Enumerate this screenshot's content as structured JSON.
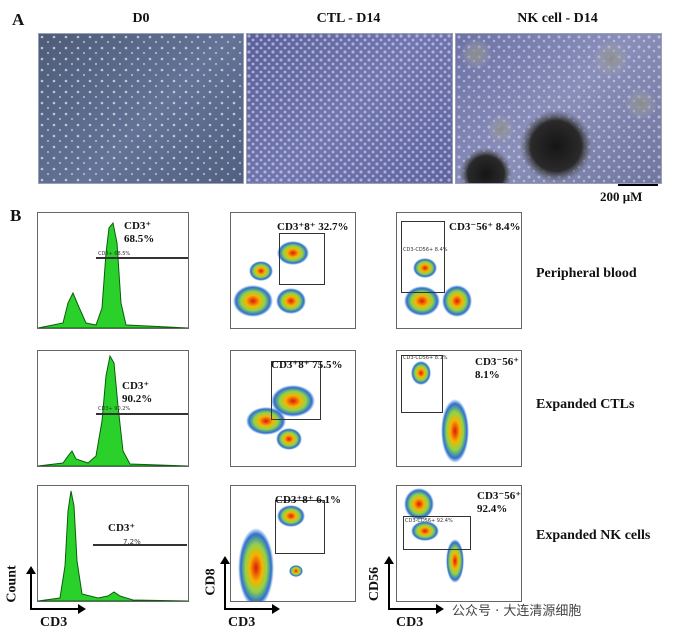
{
  "panel_a": {
    "letter": "A",
    "columns": [
      "D0",
      "CTL - D14",
      "NK cell - D14"
    ],
    "scale_bar_label": "200 μM"
  },
  "panel_b": {
    "letter": "B",
    "rows": [
      "Peripheral blood",
      "Expanded CTLs",
      "Expanded NK cells"
    ],
    "histograms": [
      {
        "gate_label": "CD3⁺",
        "value": "68.5%",
        "tiny": "CD3+ 68.5%"
      },
      {
        "gate_label": "CD3⁺",
        "value": "90.2%",
        "tiny": "CD3+ 90.2%"
      },
      {
        "gate_label": "CD3⁺",
        "value": "7.2%"
      }
    ],
    "cd8_plots": [
      {
        "label": "CD3⁺8⁺ 32.7%"
      },
      {
        "label": "CD3⁺8⁺ 75.5%"
      },
      {
        "label": "CD3⁺8⁺ 6.1%"
      }
    ],
    "cd56_plots": [
      {
        "label": "CD3⁻56⁺ 8.4%",
        "tiny": "CD3-CD56+ 8.4%"
      },
      {
        "label": "CD3⁻56⁺ 8.1%",
        "tiny": "CD3-CD56+ 8.1%"
      },
      {
        "label": "CD3⁻56⁺ 92.4%",
        "tiny": "CD3-CD56+ 92.4%"
      }
    ],
    "axes": {
      "hist_y": "Count",
      "hist_x": "CD3",
      "cd8_y": "CD8",
      "cd8_x": "CD3",
      "cd56_y": "CD56",
      "cd56_x": "CD3"
    }
  },
  "watermark": "公众号 · 大连清源细胞"
}
